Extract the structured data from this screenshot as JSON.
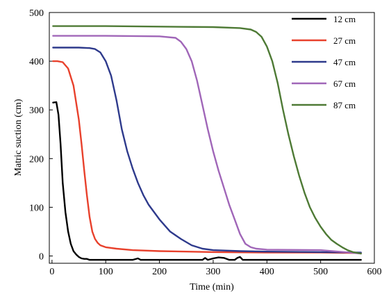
{
  "chart_data": {
    "type": "line",
    "xlabel": "Time (min)",
    "ylabel": "Matric suction (cm)",
    "xlim": [
      -5,
      600
    ],
    "ylim": [
      -15,
      500
    ],
    "xticks": [
      0,
      100,
      200,
      300,
      400,
      500,
      600
    ],
    "yticks": [
      0,
      100,
      200,
      300,
      400,
      500
    ],
    "legend_position": "top-right",
    "series": [
      {
        "name": "12 cm",
        "color": "#000000",
        "x": [
          2,
          8,
          12,
          16,
          20,
          25,
          30,
          35,
          40,
          45,
          50,
          55,
          60,
          65,
          70,
          100,
          150,
          160,
          165,
          200,
          280,
          285,
          290,
          300,
          310,
          320,
          330,
          340,
          345,
          350,
          355,
          400,
          500,
          575
        ],
        "y": [
          315,
          316,
          290,
          230,
          150,
          90,
          50,
          25,
          10,
          3,
          -2,
          -5,
          -6,
          -6,
          -8,
          -8,
          -8,
          -5,
          -8,
          -8,
          -8,
          -4,
          -8,
          -5,
          -3,
          -4,
          -8,
          -8,
          -4,
          -2,
          -8,
          -8,
          -8,
          -8
        ]
      },
      {
        "name": "27 cm",
        "color": "#e8412c",
        "x": [
          2,
          10,
          20,
          30,
          40,
          50,
          55,
          60,
          65,
          70,
          75,
          80,
          85,
          90,
          100,
          120,
          150,
          200,
          250,
          300,
          400,
          500,
          575
        ],
        "y": [
          400,
          400,
          398,
          385,
          350,
          280,
          230,
          175,
          125,
          80,
          50,
          35,
          27,
          22,
          18,
          15,
          12,
          10,
          9,
          8,
          7,
          7,
          6
        ]
      },
      {
        "name": "47 cm",
        "color": "#2e3a8c",
        "x": [
          2,
          50,
          70,
          80,
          90,
          100,
          110,
          120,
          130,
          140,
          150,
          160,
          170,
          180,
          200,
          220,
          240,
          260,
          280,
          300,
          350,
          400,
          500,
          575
        ],
        "y": [
          428,
          428,
          427,
          425,
          418,
          400,
          370,
          320,
          260,
          215,
          180,
          150,
          125,
          105,
          75,
          50,
          35,
          22,
          15,
          12,
          10,
          9,
          8,
          7
        ]
      },
      {
        "name": "67 cm",
        "color": "#a066b8",
        "x": [
          2,
          100,
          200,
          230,
          240,
          250,
          260,
          270,
          280,
          290,
          300,
          310,
          320,
          330,
          340,
          350,
          360,
          370,
          380,
          400,
          500,
          575
        ],
        "y": [
          452,
          452,
          451,
          448,
          440,
          425,
          400,
          360,
          310,
          260,
          215,
          175,
          140,
          105,
          75,
          45,
          25,
          18,
          15,
          13,
          12,
          5
        ]
      },
      {
        "name": "87 cm",
        "color": "#4e7a35",
        "x": [
          2,
          100,
          200,
          300,
          350,
          370,
          380,
          390,
          400,
          410,
          420,
          430,
          440,
          450,
          460,
          470,
          480,
          490,
          500,
          510,
          520,
          530,
          540,
          550,
          560,
          575
        ],
        "y": [
          472,
          472,
          471,
          470,
          468,
          465,
          460,
          450,
          430,
          400,
          355,
          300,
          250,
          205,
          165,
          130,
          100,
          78,
          60,
          45,
          33,
          25,
          18,
          12,
          8,
          5
        ]
      }
    ]
  }
}
